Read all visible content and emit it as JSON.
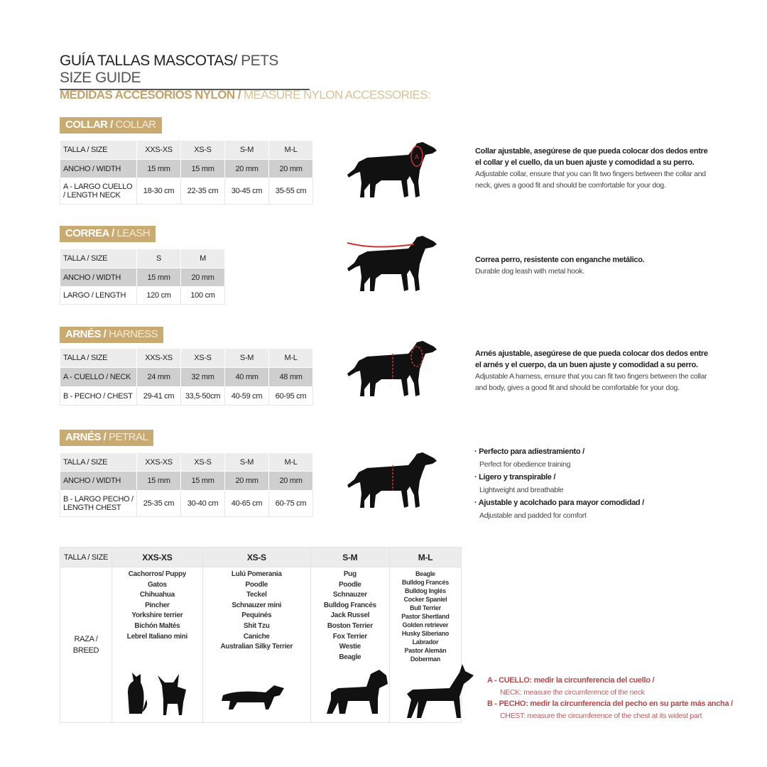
{
  "title": {
    "es": "GUÍA TALLAS MASCOTAS/",
    "en": " PETS SIZE GUIDE"
  },
  "subtitle": {
    "es": "MEDIDAS ACCESORIOS NYLON /",
    "en": " MEASURE NYLON ACCESSORIES:"
  },
  "colors": {
    "gold": "#c9ab72",
    "accent_red": "#b4494a",
    "row_header": "#ececec",
    "row_dark": "#cfcfcf"
  },
  "sections": [
    {
      "id": "collar",
      "tag_es": "COLLAR /",
      "tag_en": " COLLAR",
      "rows": [
        [
          "TALLA / SIZE",
          "XXS-XS",
          "XS-S",
          "S-M",
          "M-L"
        ],
        [
          "ANCHO / WIDTH",
          "15 mm",
          "15 mm",
          "20 mm",
          "20 mm"
        ],
        [
          "A - LARGO CUELLO / LENGTH NECK",
          "18-30 cm",
          "22-35 cm",
          "30-45 cm",
          "35-55 cm"
        ]
      ],
      "desc_es": "Collar ajustable, asegúrese de que pueda colocar dos dedos entre el collar y el cuello, da un buen ajuste y comodidad a su perro.",
      "desc_en": "Adjustable collar, ensure that you can fit two fingers between the collar and neck, gives a good fit and should be comfortable for your dog.",
      "icon": "dog-collar-icon"
    },
    {
      "id": "leash",
      "tag_es": "CORREA /",
      "tag_en": " LEASH",
      "rows": [
        [
          "TALLA / SIZE",
          "S",
          "M"
        ],
        [
          "ANCHO / WIDTH",
          "15 mm",
          "20 mm"
        ],
        [
          "LARGO / LENGTH",
          "120 cm",
          "100 cm"
        ]
      ],
      "desc_es": "Correa perro, resistente con enganche metálico.",
      "desc_en": "Durable dog leash with metal hook.",
      "icon": "dog-leash-icon"
    },
    {
      "id": "harness",
      "tag_es": "ARNÉS /",
      "tag_en": " HARNESS",
      "rows": [
        [
          "TALLA / SIZE",
          "XXS-XS",
          "XS-S",
          "S-M",
          "M-L"
        ],
        [
          "A - CUELLO / NECK",
          "24 mm",
          "32 mm",
          "40 mm",
          "48 mm"
        ],
        [
          "B - PECHO / CHEST",
          "29-41 cm",
          "33,5-50cm",
          "40-59 cm",
          "60-95 cm"
        ]
      ],
      "desc_es": "Arnés ajustable, asegúrese de que pueda colocar dos dedos entre el arnés y el cuerpo, da un buen ajuste y comodidad a su perro.",
      "desc_en": "Adjustable A harness, ensure that you can fit two fingers between the collar and body, gives a good fit and should be comfortable for your dog.",
      "icon": "dog-harness-icon"
    },
    {
      "id": "petral",
      "tag_es": "ARNÉS /",
      "tag_en": " PETRAL",
      "rows": [
        [
          "TALLA / SIZE",
          "XXS-XS",
          "XS-S",
          "S-M",
          "M-L"
        ],
        [
          "ANCHO / WIDTH",
          "15 mm",
          "15 mm",
          "20 mm",
          "20 mm"
        ],
        [
          "B - LARGO PECHO / LENGTH CHEST",
          "25-35 cm",
          "30-40 cm",
          "40-65 cm",
          "60-75 cm"
        ]
      ],
      "bullets": [
        {
          "es": "· Perfecto para adiestramiento /",
          "en": "Perfect for obedience training"
        },
        {
          "es": "· Ligero y transpirable /",
          "en": "Lightweight and breathable"
        },
        {
          "es": "· Ajustable y acolchado para mayor comodidad /",
          "en": "Adjustable and padded for comfort"
        }
      ],
      "icon": "dog-petral-icon"
    }
  ],
  "breeds": {
    "header": [
      "TALLA /  SIZE",
      "XXS-XS",
      "XS-S",
      "S-M",
      "M-L"
    ],
    "row_label": "RAZA / BREED",
    "lists": [
      [
        "Cachorros/ Puppy",
        "Gatos",
        "Chihuahua",
        "Pincher",
        "Yorkshire terrier",
        "Bichón Maltés",
        "Lebrel Italiano mini"
      ],
      [
        "Lulú Pomerania",
        "Poodle",
        "Teckel",
        "Schnauzer mini",
        "Pequinés",
        "Shit Tzu",
        "Caniche",
        "Australian Silky Terrier"
      ],
      [
        "Pug",
        "Poodle",
        "Schnauzer",
        "Bulldog Francés",
        "Jack Russel",
        "Boston Terrier",
        "Fox Terrier",
        "Westie",
        "Beagle"
      ],
      [
        "Beagle",
        "Bulldog Francés",
        "Bulldog Inglés",
        "Cocker Spaniel",
        "Bull Terrier",
        "Pastor Shertland",
        "Golden retriever",
        "Husky Siberiano",
        "Labrador",
        "Pastor Alemán",
        "Doberman"
      ]
    ],
    "icons": [
      "cat-and-chihuahua-icon",
      "dachshund-icon",
      "schnauzer-icon",
      "doberman-icon"
    ]
  },
  "notes": [
    {
      "es": "A - CUELLO: medir la circunferencia del cuello /",
      "en": "NECK: measure the circumference of the neck"
    },
    {
      "es": "B - PECHO: medir la circunferencia del pecho en su parte más ancha /",
      "en": "CHEST: measure the circumference of the chest at its widest part"
    }
  ]
}
